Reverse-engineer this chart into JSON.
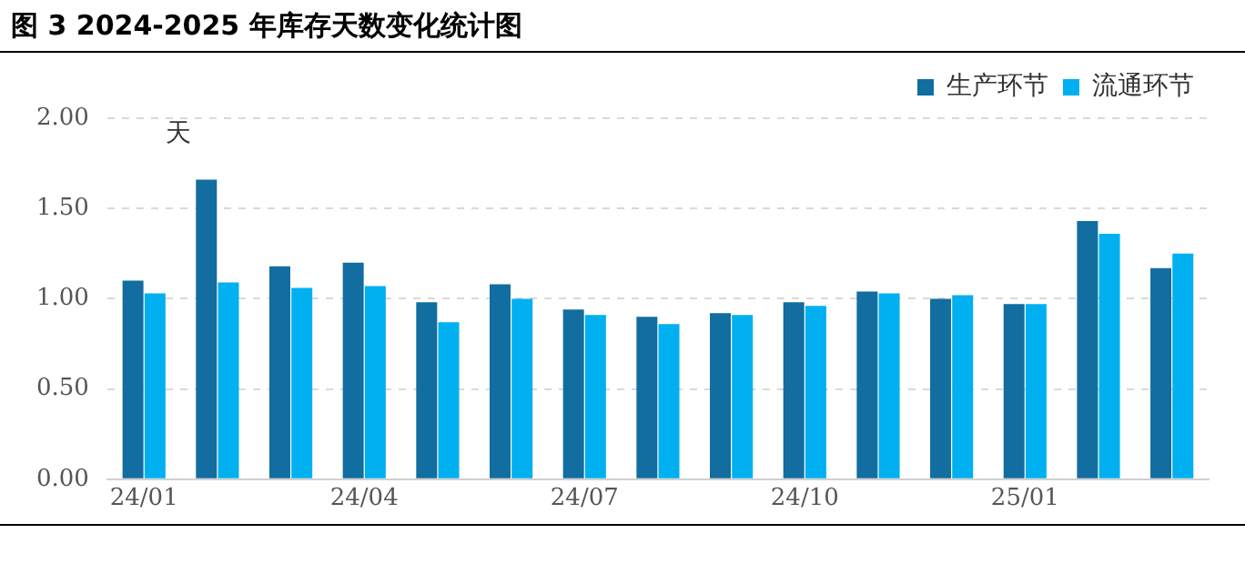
{
  "chart_data": {
    "type": "bar",
    "title": "图 3 2024-2025 年库存天数变化统计图",
    "ylabel": "天",
    "categories": [
      "24/01",
      null,
      null,
      "24/04",
      null,
      null,
      "24/07",
      null,
      null,
      "24/10",
      null,
      null,
      "25/01",
      null,
      null
    ],
    "series": [
      {
        "name": "生产环节",
        "color": "#126da0",
        "values": [
          1.1,
          1.66,
          1.18,
          1.2,
          0.98,
          1.08,
          0.94,
          0.9,
          0.92,
          0.98,
          1.04,
          1.0,
          0.97,
          1.43,
          1.17
        ]
      },
      {
        "name": "流通环节",
        "color": "#00b0f0",
        "values": [
          1.03,
          1.09,
          1.06,
          1.07,
          0.87,
          1.0,
          0.91,
          0.86,
          0.91,
          0.96,
          1.03,
          1.02,
          0.97,
          1.36,
          1.25
        ]
      }
    ],
    "ylim": [
      0,
      2
    ],
    "yticks": [
      {
        "value": 0,
        "label": "0.00"
      },
      {
        "value": 0.5,
        "label": "0.50"
      },
      {
        "value": 1,
        "label": "1.00"
      },
      {
        "value": 1.5,
        "label": "1.50"
      },
      {
        "value": 2,
        "label": "2.00"
      }
    ],
    "grid": "y",
    "legend": "top right"
  }
}
